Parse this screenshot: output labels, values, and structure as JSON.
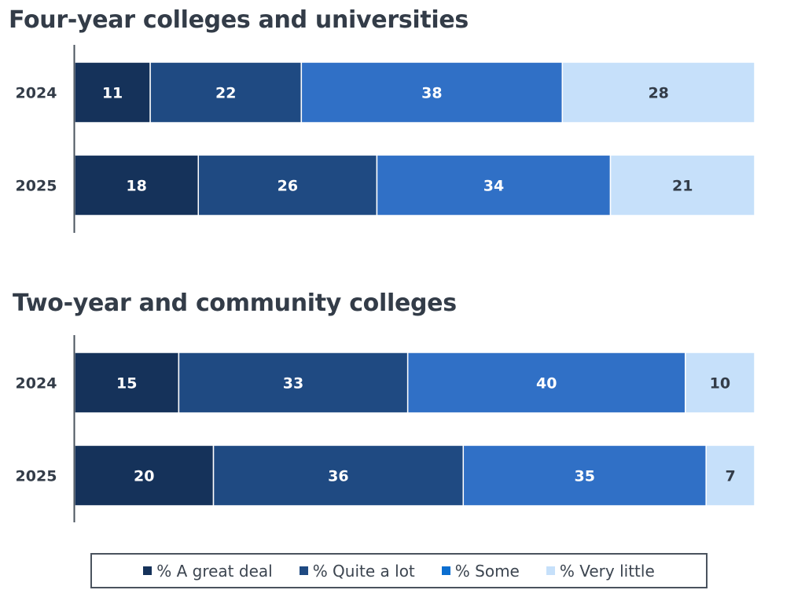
{
  "legend": [
    {
      "label": "% A great deal",
      "color": "#15325a"
    },
    {
      "label": "% Quite a lot",
      "color": "#1f4a82"
    },
    {
      "label": "% Some",
      "color": "#0b6ed0"
    },
    {
      "label": "% Very little",
      "color": "#c6e0fa"
    }
  ],
  "chart_data": [
    {
      "type": "bar",
      "orientation": "horizontal",
      "stacked": true,
      "title": "Four-year colleges and universities",
      "categories": [
        "2024",
        "2025"
      ],
      "series": [
        {
          "name": "% A great deal",
          "values": [
            11,
            18
          ],
          "color": "#15325a",
          "label_color": "#ffffff"
        },
        {
          "name": "% Quite a lot",
          "values": [
            22,
            26
          ],
          "color": "#1f4a82",
          "label_color": "#ffffff"
        },
        {
          "name": "% Some",
          "values": [
            38,
            34
          ],
          "color": "#3070c6",
          "label_color": "#ffffff"
        },
        {
          "name": "% Very little",
          "values": [
            28,
            21
          ],
          "color": "#c6e0fa",
          "label_color": "#333c48"
        }
      ],
      "xlabel": "",
      "ylabel": "",
      "grid": false,
      "legend_position": "bottom"
    },
    {
      "type": "bar",
      "orientation": "horizontal",
      "stacked": true,
      "title": "Two-year and community colleges",
      "categories": [
        "2024",
        "2025"
      ],
      "series": [
        {
          "name": "% A great deal",
          "values": [
            15,
            20
          ],
          "color": "#15325a",
          "label_color": "#ffffff"
        },
        {
          "name": "% Quite a lot",
          "values": [
            33,
            36
          ],
          "color": "#1f4a82",
          "label_color": "#ffffff"
        },
        {
          "name": "% Some",
          "values": [
            40,
            35
          ],
          "color": "#3070c6",
          "label_color": "#ffffff"
        },
        {
          "name": "% Very little",
          "values": [
            10,
            7
          ],
          "color": "#c6e0fa",
          "label_color": "#333c48"
        }
      ],
      "xlabel": "",
      "ylabel": "",
      "grid": false,
      "legend_position": "bottom"
    }
  ]
}
